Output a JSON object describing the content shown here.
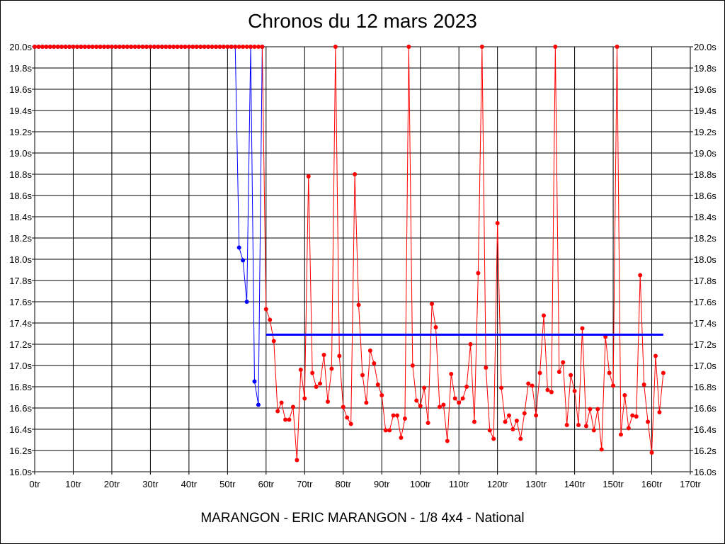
{
  "chart_data": {
    "type": "line",
    "title": "Chronos du 12 mars 2023",
    "xlabel": "MARANGON - ERIC MARANGON - 1/8 4x4 - National",
    "ylabel": "",
    "xlim": [
      0,
      170
    ],
    "ylim": [
      16.0,
      20.0
    ],
    "grid": true,
    "x_ticks": [
      "0tr",
      "10tr",
      "20tr",
      "30tr",
      "40tr",
      "50tr",
      "60tr",
      "70tr",
      "80tr",
      "90tr",
      "100tr",
      "110tr",
      "120tr",
      "130tr",
      "140tr",
      "150tr",
      "160tr",
      "170tr"
    ],
    "y_ticks": [
      "16.0s",
      "16.2s",
      "16.4s",
      "16.6s",
      "16.8s",
      "17.0s",
      "17.2s",
      "17.4s",
      "17.6s",
      "17.8s",
      "18.0s",
      "18.2s",
      "18.4s",
      "18.6s",
      "18.8s",
      "19.0s",
      "19.2s",
      "19.4s",
      "19.6s",
      "19.8s",
      "20.0s"
    ],
    "series": [
      {
        "name": "blue-run",
        "color": "#0000ff",
        "x_start": 0,
        "values": [
          20,
          20,
          20,
          20,
          20,
          20,
          20,
          20,
          20,
          20,
          20,
          20,
          20,
          20,
          20,
          20,
          20,
          20,
          20,
          20,
          20,
          20,
          20,
          20,
          20,
          20,
          20,
          20,
          20,
          20,
          20,
          20,
          20,
          20,
          20,
          20,
          20,
          20,
          20,
          20,
          20,
          20,
          20,
          20,
          20,
          20,
          20,
          20,
          20,
          20,
          20,
          20,
          20,
          18.11,
          17.99,
          17.6,
          20,
          16.85,
          16.63,
          20
        ]
      },
      {
        "name": "red-run",
        "color": "#ff0000",
        "x_start": 0,
        "values": [
          20,
          20,
          20,
          20,
          20,
          20,
          20,
          20,
          20,
          20,
          20,
          20,
          20,
          20,
          20,
          20,
          20,
          20,
          20,
          20,
          20,
          20,
          20,
          20,
          20,
          20,
          20,
          20,
          20,
          20,
          20,
          20,
          20,
          20,
          20,
          20,
          20,
          20,
          20,
          20,
          20,
          20,
          20,
          20,
          20,
          20,
          20,
          20,
          20,
          20,
          20,
          20,
          20,
          20,
          20,
          20,
          20,
          20,
          20,
          20,
          17.53,
          17.43,
          17.23,
          16.57,
          16.65,
          16.49,
          16.49,
          16.61,
          16.11,
          16.96,
          16.69,
          18.78,
          16.93,
          16.8,
          16.83,
          17.1,
          16.66,
          16.97,
          20,
          17.09,
          16.61,
          16.51,
          16.45,
          18.8,
          17.57,
          16.91,
          16.65,
          17.14,
          17.02,
          16.82,
          16.72,
          16.39,
          16.39,
          16.53,
          16.53,
          16.32,
          16.5,
          20,
          17.0,
          16.67,
          16.62,
          16.79,
          16.46,
          17.58,
          17.36,
          16.61,
          16.63,
          16.29,
          16.92,
          16.69,
          16.65,
          16.69,
          16.8,
          17.2,
          16.47,
          17.87,
          20,
          16.98,
          16.39,
          16.31,
          18.34,
          16.79,
          16.47,
          16.53,
          16.4,
          16.48,
          16.31,
          16.55,
          16.83,
          16.81,
          16.53,
          16.93,
          17.47,
          16.77,
          16.75,
          20,
          16.94,
          17.03,
          16.44,
          16.91,
          16.76,
          16.44,
          17.35,
          16.43,
          16.59,
          16.39,
          16.59,
          16.21,
          17.27,
          16.93,
          16.81,
          20,
          16.35,
          16.72,
          16.41,
          16.53,
          16.52,
          17.85,
          16.82,
          16.47,
          16.18,
          17.09,
          16.56,
          16.93
        ]
      }
    ],
    "average_line": {
      "name": "average",
      "color": "#0000ff",
      "value": 17.29,
      "x_range": [
        60,
        163
      ]
    }
  }
}
